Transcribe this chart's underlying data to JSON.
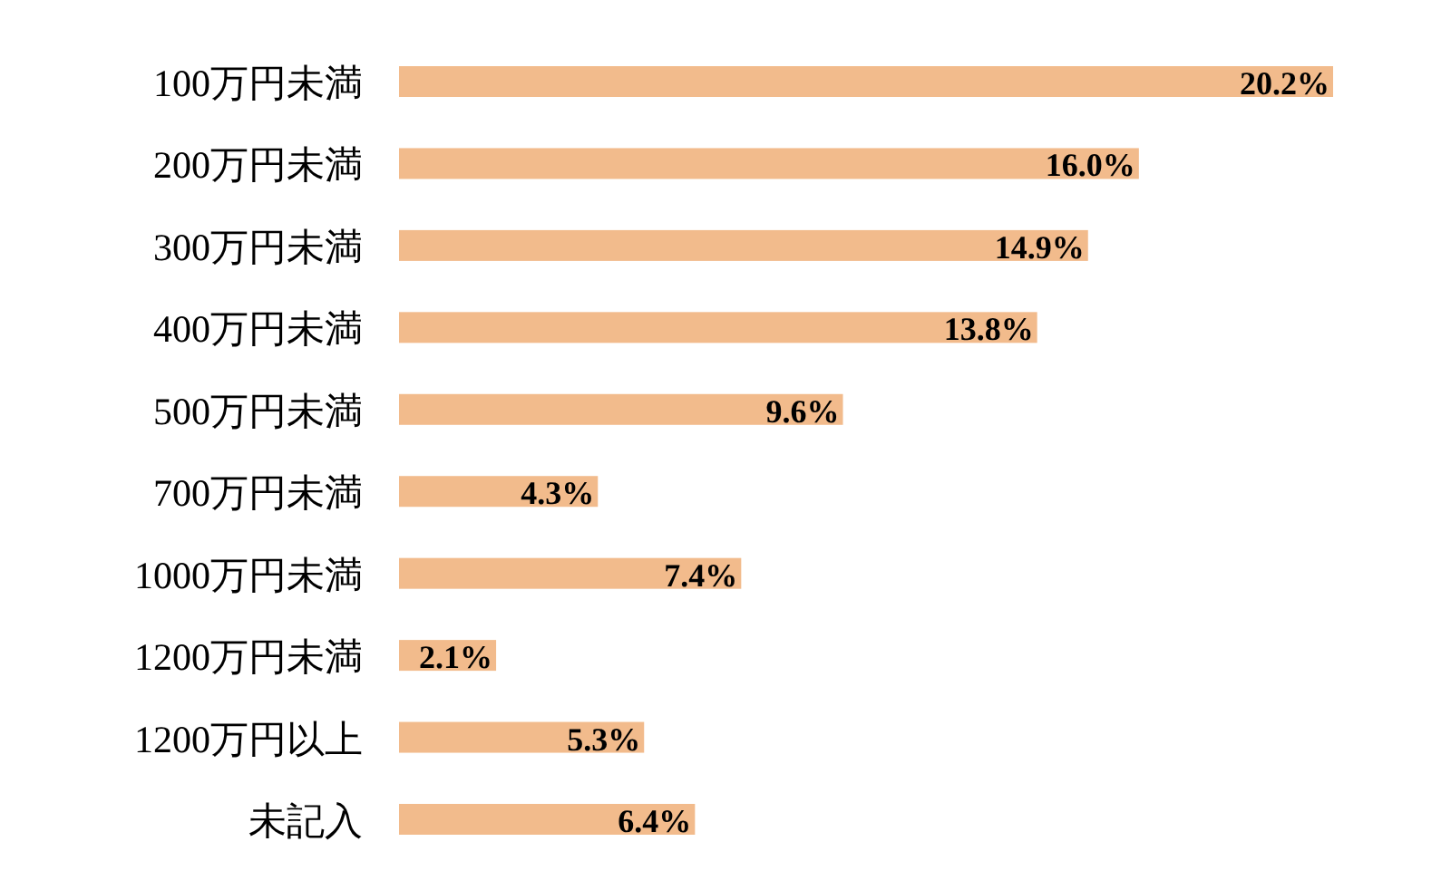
{
  "chart_data": {
    "type": "bar",
    "orientation": "horizontal",
    "categories": [
      "100万円未満",
      "200万円未満",
      "300万円未満",
      "400万円未満",
      "500万円未満",
      "700万円未満",
      "1000万円未満",
      "1200万円未満",
      "1200万円以上",
      "未記入"
    ],
    "values": [
      20.2,
      16.0,
      14.9,
      13.8,
      9.6,
      4.3,
      7.4,
      2.1,
      5.3,
      6.4
    ],
    "value_labels": [
      "20.2%",
      "16.0%",
      "14.9%",
      "13.8%",
      "9.6%",
      "4.3%",
      "7.4%",
      "2.1%",
      "5.3%",
      "6.4%"
    ],
    "color": "#f2bb8c"
  }
}
